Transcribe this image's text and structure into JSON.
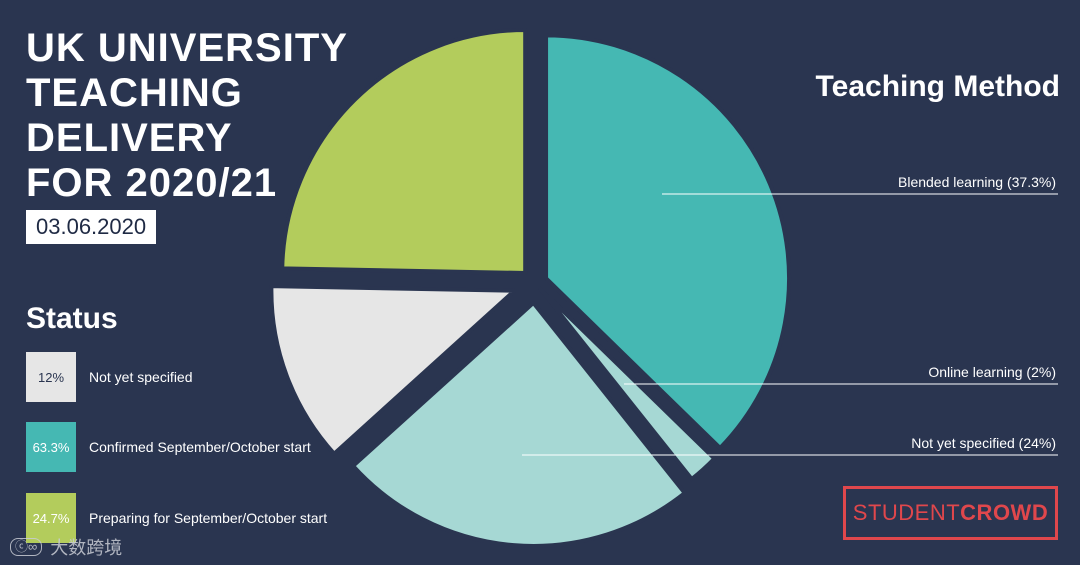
{
  "title_lines": [
    "UK UNIVERSITY",
    "TEACHING",
    "DELIVERY",
    "FOR 2020/21"
  ],
  "date": "03.06.2020",
  "status": {
    "heading": "Status",
    "items": [
      {
        "value": "12%",
        "label": "Not yet specified",
        "color": "#e6e6e6"
      },
      {
        "value": "63.3%",
        "label": "Confirmed September/October start",
        "color": "#45b8b3"
      },
      {
        "value": "24.7%",
        "label": "Preparing for September/October start",
        "color": "#b3cc5c"
      }
    ]
  },
  "method": {
    "heading": "Teaching Method"
  },
  "callouts": [
    {
      "text": "Blended learning (37.3%)"
    },
    {
      "text": "Online learning (2%)"
    },
    {
      "text": "Not yet specified (24%)"
    }
  ],
  "logo": {
    "part1": "STUDENT",
    "part2": "CROWD",
    "color": "#e0474c"
  },
  "watermark": {
    "mark": "ⓒ∞",
    "text": "大数跨境"
  },
  "chart_data": {
    "type": "pie",
    "title": "UK UNIVERSITY TEACHING DELIVERY FOR 2020/21",
    "slices": [
      {
        "label": "Blended learning",
        "value": 37.3,
        "group": "Confirmed September/October start",
        "color": "#45b8b3"
      },
      {
        "label": "Online learning",
        "value": 2,
        "group": "Confirmed September/October start",
        "color": "#a6d8d4"
      },
      {
        "label": "Not yet specified",
        "value": 24,
        "group": "Confirmed September/October start",
        "color": "#a6d8d4"
      },
      {
        "label": "Not yet specified",
        "value": 12,
        "group": "Not yet specified",
        "color": "#e6e6e6"
      },
      {
        "label": "Preparing for September/October start",
        "value": 24.7,
        "group": "Preparing for September/October start",
        "color": "#b3cc5c"
      }
    ],
    "background": "#2a3550"
  }
}
